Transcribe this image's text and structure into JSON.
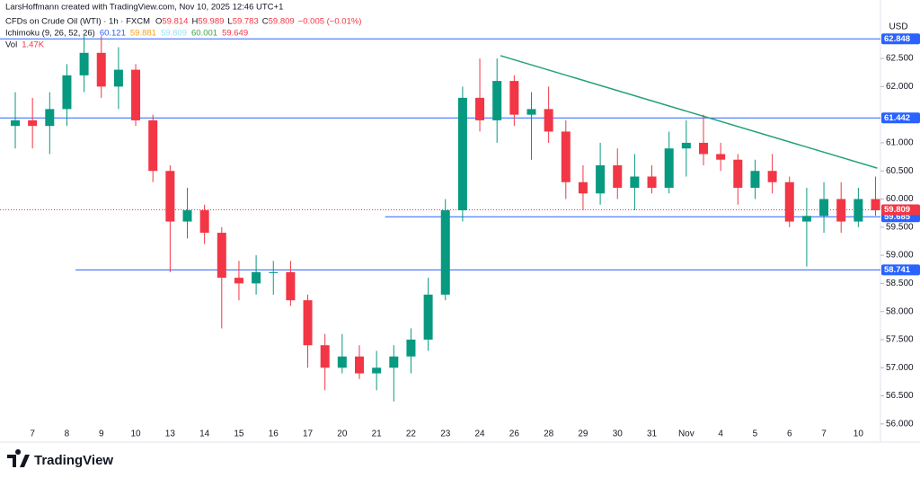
{
  "header": {
    "credit": "LarsHoffmann created with TradingView.com, Nov 10, 2025 12:46 UTC+1",
    "symbol": "CFDs on Crude Oil (WTI) · 1h · FXCM",
    "ohlc": [
      {
        "key": "O",
        "text": "59.814"
      },
      {
        "key": "H",
        "text": "59.989"
      },
      {
        "key": "L",
        "text": "59.783"
      },
      {
        "key": "C",
        "text": "59.809"
      }
    ],
    "change": "−0.005 (−0.01%)",
    "ichimoku": "Ichimoku (9, 26, 52, 26)",
    "ichimoku_values": [
      "60.121",
      "59.881",
      "59.809",
      "60.001",
      "59.649"
    ],
    "vol": "Vol",
    "vol_value": "1.47K",
    "currency": "USD",
    "brand": "TradingView"
  },
  "chart_data": {
    "type": "candlestick",
    "categories": [
      null,
      "7",
      null,
      "8",
      null,
      "9",
      null,
      "10",
      null,
      "13",
      null,
      "14",
      null,
      "15",
      null,
      "16",
      null,
      "17",
      null,
      "20",
      null,
      "21",
      null,
      "22",
      null,
      "23",
      null,
      "24",
      null,
      "26",
      null,
      "28",
      null,
      "29",
      null,
      "30",
      null,
      "31",
      null,
      "Nov",
      null,
      "4",
      null,
      "5",
      null,
      "6",
      null,
      "7",
      null,
      "10",
      null
    ],
    "open": [
      61.3,
      61.4,
      61.3,
      61.6,
      62.2,
      62.6,
      62.0,
      62.3,
      61.4,
      60.5,
      59.6,
      59.8,
      59.4,
      58.6,
      58.5,
      58.7,
      58.7,
      58.2,
      57.4,
      57.0,
      57.2,
      56.9,
      57.0,
      57.2,
      57.5,
      58.3,
      59.8,
      61.8,
      61.4,
      62.1,
      61.5,
      61.6,
      61.2,
      60.3,
      60.1,
      60.6,
      60.2,
      60.4,
      60.2,
      60.9,
      61.0,
      60.8,
      60.7,
      60.2,
      60.5,
      60.3,
      59.6,
      59.7,
      60.0,
      59.6,
      60.0
    ],
    "high": [
      61.9,
      61.8,
      61.9,
      62.4,
      62.9,
      62.9,
      62.7,
      62.4,
      61.5,
      60.6,
      60.2,
      59.9,
      59.5,
      58.9,
      59.0,
      58.9,
      58.9,
      58.3,
      57.6,
      57.6,
      57.4,
      57.3,
      57.4,
      57.7,
      58.6,
      60.0,
      62.0,
      62.5,
      62.5,
      62.2,
      61.9,
      62.0,
      61.4,
      60.6,
      61.0,
      60.9,
      60.8,
      60.6,
      61.2,
      61.4,
      61.5,
      61.0,
      60.8,
      60.7,
      60.8,
      60.4,
      60.2,
      60.3,
      60.3,
      60.2,
      60.4
    ],
    "low": [
      60.9,
      60.9,
      60.8,
      61.3,
      61.9,
      61.8,
      61.6,
      61.3,
      60.3,
      58.7,
      59.3,
      59.2,
      57.7,
      58.2,
      58.3,
      58.3,
      58.1,
      57.0,
      56.6,
      56.9,
      56.8,
      56.6,
      56.4,
      56.9,
      57.3,
      58.2,
      59.6,
      61.2,
      61.0,
      61.3,
      60.7,
      61.0,
      60.0,
      59.8,
      59.9,
      60.0,
      59.8,
      60.1,
      60.1,
      60.4,
      60.6,
      60.5,
      59.9,
      60.0,
      60.1,
      59.5,
      58.8,
      59.4,
      59.4,
      59.5,
      59.7
    ],
    "close": [
      61.4,
      61.3,
      61.6,
      62.2,
      62.6,
      62.0,
      62.3,
      61.4,
      60.5,
      59.6,
      59.8,
      59.4,
      58.6,
      58.5,
      58.7,
      58.7,
      58.2,
      57.4,
      57.0,
      57.2,
      56.9,
      57.0,
      57.2,
      57.5,
      58.3,
      59.8,
      61.8,
      61.4,
      62.1,
      61.5,
      61.6,
      61.2,
      60.3,
      60.1,
      60.6,
      60.2,
      60.4,
      60.2,
      60.9,
      61.0,
      60.8,
      60.7,
      60.2,
      60.5,
      60.3,
      59.6,
      59.7,
      60.0,
      59.6,
      60.0,
      59.8
    ],
    "up_color": "#089981",
    "down_color": "#f23645",
    "ylim": [
      55.71,
      63.38
    ],
    "yticks": [
      {
        "value": 56,
        "label": "56.000"
      },
      {
        "value": 56.5,
        "label": "56.500"
      },
      {
        "value": 57,
        "label": "57.000"
      },
      {
        "value": 57.5,
        "label": "57.500"
      },
      {
        "value": 58,
        "label": "58.000"
      },
      {
        "value": 58.5,
        "label": "58.500"
      },
      {
        "value": 59,
        "label": "59.000"
      },
      {
        "value": 59.5,
        "label": "59.500"
      },
      {
        "value": 60,
        "label": "60.000"
      },
      {
        "value": 60.5,
        "label": "60.500"
      },
      {
        "value": 61,
        "label": "61.000"
      },
      {
        "value": 62,
        "label": "62.000"
      },
      {
        "value": 62.5,
        "label": "62.500"
      }
    ],
    "hlines": [
      {
        "value": 62.848,
        "color": "#2962ff",
        "start": 0
      },
      {
        "value": 61.442,
        "color": "#2962ff",
        "start": 0
      },
      {
        "value": 59.685,
        "color": "#2962ff",
        "start": 22
      },
      {
        "value": 58.741,
        "color": "#2962ff",
        "start": 4
      },
      {
        "value": 59.809,
        "color": "#f23645",
        "start": 0,
        "dotted": true
      }
    ],
    "trendline": {
      "y": [
        62.55,
        60.55
      ],
      "x": [
        28.2,
        50.1
      ],
      "color": "#26a17b"
    }
  }
}
